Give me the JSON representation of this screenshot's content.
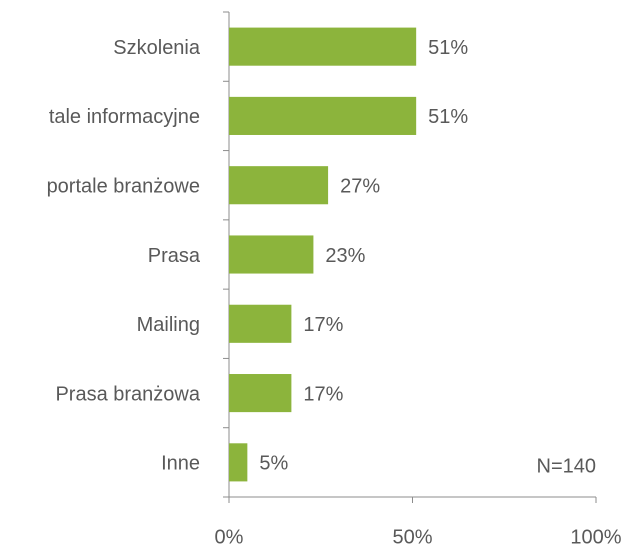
{
  "chart_data": {
    "type": "hbar",
    "categories": [
      "Szkolenia",
      "tale informacyjne",
      "portale branżowe",
      "Prasa",
      "Mailing",
      "Prasa branżowa",
      "Inne"
    ],
    "values": [
      51,
      51,
      27,
      23,
      17,
      17,
      5
    ],
    "value_labels": [
      "51%",
      "51%",
      "27%",
      "23%",
      "17%",
      "17%",
      "5%"
    ],
    "color": "#8cb43c",
    "xlim": [
      0,
      100
    ],
    "xticks": [
      {
        "value": 0,
        "label": "0%"
      },
      {
        "value": 50,
        "label": "50%"
      },
      {
        "value": 100,
        "label": "100%"
      }
    ],
    "annotation": "N=140"
  }
}
